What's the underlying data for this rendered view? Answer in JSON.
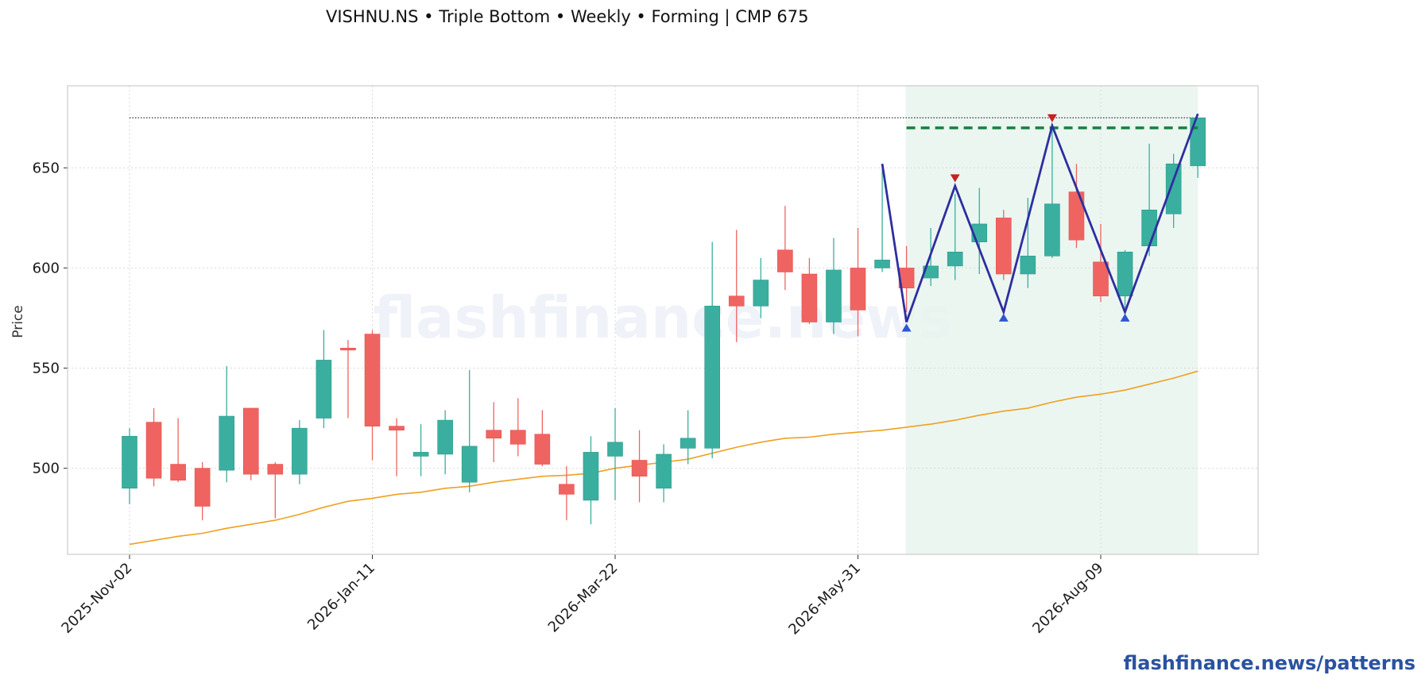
{
  "chart_data": {
    "type": "candlestick",
    "title": "VISHNU.NS  •  Triple Bottom  •  Weekly  •  Forming  |  CMP 675",
    "xlabel": "",
    "ylabel": "Price",
    "ylim": [
      457,
      691
    ],
    "yticks": [
      500,
      550,
      600,
      650
    ],
    "xtick_labels": [
      "2025-Nov-02",
      "2026-Jan-11",
      "2026-Mar-22",
      "2026-May-31",
      "2026-Aug-09"
    ],
    "xtick_indices": [
      0,
      10,
      20,
      30,
      40
    ],
    "grid": true,
    "watermark": "flashfinance.news",
    "footer": "flashfinance.news/patterns",
    "colors": {
      "up": "#3aafa0",
      "down": "#ef6461",
      "ma": "#f0a020",
      "pattern_line": "#2e2ea0",
      "neckline": "#158040",
      "trough_marker": "#2f55d4",
      "peak_marker": "#c42222",
      "highlight": "#e8f5ee",
      "reference_line": "#333333"
    },
    "candles": [
      {
        "date": "2025-Nov-02",
        "open": 490,
        "high": 520,
        "low": 482,
        "close": 516
      },
      {
        "date": "2025-Nov-09",
        "open": 523,
        "high": 530,
        "low": 491,
        "close": 495
      },
      {
        "date": "2025-Nov-16",
        "open": 502,
        "high": 525,
        "low": 493,
        "close": 494
      },
      {
        "date": "2025-Nov-23",
        "open": 500,
        "high": 503,
        "low": 474,
        "close": 481
      },
      {
        "date": "2025-Nov-30",
        "open": 499,
        "high": 551,
        "low": 493,
        "close": 526
      },
      {
        "date": "2025-Dec-07",
        "open": 530,
        "high": 530,
        "low": 494,
        "close": 497
      },
      {
        "date": "2025-Dec-14",
        "open": 502,
        "high": 503,
        "low": 475,
        "close": 497
      },
      {
        "date": "2025-Dec-21",
        "open": 497,
        "high": 524,
        "low": 492,
        "close": 520
      },
      {
        "date": "2025-Dec-28",
        "open": 525,
        "high": 569,
        "low": 520,
        "close": 554
      },
      {
        "date": "2026-Jan-04",
        "open": 560,
        "high": 564,
        "low": 525,
        "close": 559
      },
      {
        "date": "2026-Jan-11",
        "open": 567,
        "high": 569,
        "low": 504,
        "close": 521
      },
      {
        "date": "2026-Jan-18",
        "open": 521,
        "high": 525,
        "low": 496,
        "close": 519
      },
      {
        "date": "2026-Jan-25",
        "open": 506,
        "high": 522,
        "low": 496,
        "close": 508
      },
      {
        "date": "2026-Feb-01",
        "open": 507,
        "high": 529,
        "low": 497,
        "close": 524
      },
      {
        "date": "2026-Feb-08",
        "open": 493,
        "high": 549,
        "low": 488,
        "close": 511
      },
      {
        "date": "2026-Feb-15",
        "open": 519,
        "high": 533,
        "low": 503,
        "close": 515
      },
      {
        "date": "2026-Feb-22",
        "open": 519,
        "high": 535,
        "low": 506,
        "close": 512
      },
      {
        "date": "2026-Mar-01",
        "open": 517,
        "high": 529,
        "low": 501,
        "close": 502
      },
      {
        "date": "2026-Mar-08",
        "open": 492,
        "high": 501,
        "low": 474,
        "close": 487
      },
      {
        "date": "2026-Mar-15",
        "open": 484,
        "high": 516,
        "low": 472,
        "close": 508
      },
      {
        "date": "2026-Mar-22",
        "open": 506,
        "high": 530,
        "low": 484,
        "close": 513
      },
      {
        "date": "2026-Mar-29",
        "open": 504,
        "high": 519,
        "low": 483,
        "close": 496
      },
      {
        "date": "2026-Apr-05",
        "open": 490,
        "high": 512,
        "low": 483,
        "close": 507
      },
      {
        "date": "2026-Apr-12",
        "open": 510,
        "high": 529,
        "low": 502,
        "close": 515
      },
      {
        "date": "2026-Apr-19",
        "open": 510,
        "high": 613,
        "low": 505,
        "close": 581
      },
      {
        "date": "2026-Apr-26",
        "open": 586,
        "high": 619,
        "low": 563,
        "close": 581
      },
      {
        "date": "2026-May-03",
        "open": 581,
        "high": 605,
        "low": 575,
        "close": 594
      },
      {
        "date": "2026-May-10",
        "open": 609,
        "high": 631,
        "low": 589,
        "close": 598
      },
      {
        "date": "2026-May-17",
        "open": 597,
        "high": 605,
        "low": 572,
        "close": 573
      },
      {
        "date": "2026-May-24",
        "open": 573,
        "high": 615,
        "low": 567,
        "close": 599
      },
      {
        "date": "2026-May-31",
        "open": 600,
        "high": 620,
        "low": 566,
        "close": 579
      },
      {
        "date": "2026-Jun-07",
        "open": 600,
        "high": 652,
        "low": 598,
        "close": 604
      },
      {
        "date": "2026-Jun-14",
        "open": 600,
        "high": 611,
        "low": 578,
        "close": 590
      },
      {
        "date": "2026-Jun-21",
        "open": 595,
        "high": 620,
        "low": 591,
        "close": 601
      },
      {
        "date": "2026-Jun-28",
        "open": 601,
        "high": 637,
        "low": 594,
        "close": 608
      },
      {
        "date": "2026-Jul-05",
        "open": 613,
        "high": 640,
        "low": 597,
        "close": 622
      },
      {
        "date": "2026-Jul-12",
        "open": 625,
        "high": 629,
        "low": 594,
        "close": 597
      },
      {
        "date": "2026-Jul-19",
        "open": 597,
        "high": 635,
        "low": 590,
        "close": 606
      },
      {
        "date": "2026-Jul-26",
        "open": 606,
        "high": 671,
        "low": 605,
        "close": 632
      },
      {
        "date": "2026-Aug-02",
        "open": 638,
        "high": 652,
        "low": 610,
        "close": 614
      },
      {
        "date": "2026-Aug-09",
        "open": 603,
        "high": 622,
        "low": 583,
        "close": 586
      },
      {
        "date": "2026-Aug-16",
        "open": 586,
        "high": 609,
        "low": 580,
        "close": 608
      },
      {
        "date": "2026-Aug-23",
        "open": 611,
        "high": 662,
        "low": 606,
        "close": 629
      },
      {
        "date": "2026-Aug-30",
        "open": 627,
        "high": 657,
        "low": 620,
        "close": 652
      },
      {
        "date": "2026-Sep-06",
        "open": 651,
        "high": 675,
        "low": 645,
        "close": 675
      }
    ],
    "moving_average": [
      462,
      464,
      466,
      467.5,
      470,
      472,
      474,
      477,
      480.5,
      483.5,
      485,
      487,
      488,
      490,
      491,
      493,
      494.5,
      496,
      496.5,
      497.5,
      500,
      501.5,
      503,
      504.5,
      507.5,
      510.5,
      513,
      515,
      515.5,
      517,
      518,
      519,
      520.5,
      522,
      524,
      526.5,
      528.5,
      530,
      533,
      535.5,
      537,
      539,
      542,
      545,
      548.5
    ],
    "highlight_range": [
      32,
      44
    ],
    "pattern_zigzag": [
      {
        "index": 31,
        "price": 652
      },
      {
        "index": 32,
        "price": 573
      },
      {
        "index": 34,
        "price": 641
      },
      {
        "index": 36,
        "price": 578
      },
      {
        "index": 38,
        "price": 671
      },
      {
        "index": 41,
        "price": 578
      },
      {
        "index": 44,
        "price": 677
      }
    ],
    "troughs": [
      {
        "index": 32,
        "price": 573
      },
      {
        "index": 36,
        "price": 578
      },
      {
        "index": 41,
        "price": 578
      }
    ],
    "peaks": [
      {
        "index": 34,
        "price": 642
      },
      {
        "index": 38,
        "price": 672
      }
    ],
    "neckline": {
      "price": 670,
      "from_index": 32,
      "to_index": 44
    },
    "reference_line": {
      "price": 675,
      "from_index": 0,
      "to_index": 44
    }
  }
}
